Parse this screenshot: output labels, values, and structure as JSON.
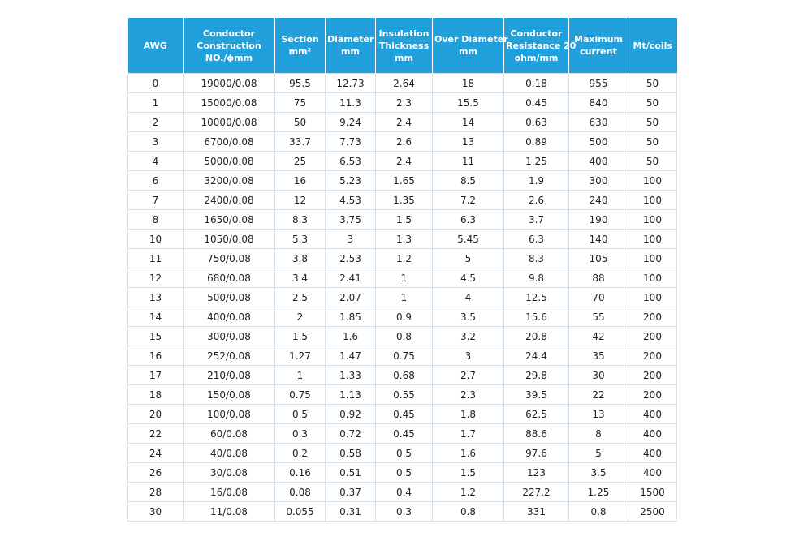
{
  "table": {
    "headers": [
      [
        "AWG"
      ],
      [
        "Conductor",
        "Construction",
        "NO./ϕmm"
      ],
      [
        "Section",
        "mm²"
      ],
      [
        "Diameter",
        "mm"
      ],
      [
        "Insulation",
        "Thickness",
        "mm"
      ],
      [
        "Over Diameter",
        "mm"
      ],
      [
        "Conductor",
        "Resistance 20",
        "ohm/mm"
      ],
      [
        "Maximum",
        "current"
      ],
      [
        "Mt/coils"
      ]
    ],
    "rows": [
      [
        "0",
        "19000/0.08",
        "95.5",
        "12.73",
        "2.64",
        "18",
        "0.18",
        "955",
        "50"
      ],
      [
        "1",
        "15000/0.08",
        "75",
        "11.3",
        "2.3",
        "15.5",
        "0.45",
        "840",
        "50"
      ],
      [
        "2",
        "10000/0.08",
        "50",
        "9.24",
        "2.4",
        "14",
        "0.63",
        "630",
        "50"
      ],
      [
        "3",
        "6700/0.08",
        "33.7",
        "7.73",
        "2.6",
        "13",
        "0.89",
        "500",
        "50"
      ],
      [
        "4",
        "5000/0.08",
        "25",
        "6.53",
        "2.4",
        "11",
        "1.25",
        "400",
        "50"
      ],
      [
        "6",
        "3200/0.08",
        "16",
        "5.23",
        "1.65",
        "8.5",
        "1.9",
        "300",
        "100"
      ],
      [
        "7",
        "2400/0.08",
        "12",
        "4.53",
        "1.35",
        "7.2",
        "2.6",
        "240",
        "100"
      ],
      [
        "8",
        "1650/0.08",
        "8.3",
        "3.75",
        "1.5",
        "6.3",
        "3.7",
        "190",
        "100"
      ],
      [
        "10",
        "1050/0.08",
        "5.3",
        "3",
        "1.3",
        "5.45",
        "6.3",
        "140",
        "100"
      ],
      [
        "11",
        "750/0.08",
        "3.8",
        "2.53",
        "1.2",
        "5",
        "8.3",
        "105",
        "100"
      ],
      [
        "12",
        "680/0.08",
        "3.4",
        "2.41",
        "1",
        "4.5",
        "9.8",
        "88",
        "100"
      ],
      [
        "13",
        "500/0.08",
        "2.5",
        "2.07",
        "1",
        "4",
        "12.5",
        "70",
        "100"
      ],
      [
        "14",
        "400/0.08",
        "2",
        "1.85",
        "0.9",
        "3.5",
        "15.6",
        "55",
        "200"
      ],
      [
        "15",
        "300/0.08",
        "1.5",
        "1.6",
        "0.8",
        "3.2",
        "20.8",
        "42",
        "200"
      ],
      [
        "16",
        "252/0.08",
        "1.27",
        "1.47",
        "0.75",
        "3",
        "24.4",
        "35",
        "200"
      ],
      [
        "17",
        "210/0.08",
        "1",
        "1.33",
        "0.68",
        "2.7",
        "29.8",
        "30",
        "200"
      ],
      [
        "18",
        "150/0.08",
        "0.75",
        "1.13",
        "0.55",
        "2.3",
        "39.5",
        "22",
        "200"
      ],
      [
        "20",
        "100/0.08",
        "0.5",
        "0.92",
        "0.45",
        "1.8",
        "62.5",
        "13",
        "400"
      ],
      [
        "22",
        "60/0.08",
        "0.3",
        "0.72",
        "0.45",
        "1.7",
        "88.6",
        "8",
        "400"
      ],
      [
        "24",
        "40/0.08",
        "0.2",
        "0.58",
        "0.5",
        "1.6",
        "97.6",
        "5",
        "400"
      ],
      [
        "26",
        "30/0.08",
        "0.16",
        "0.51",
        "0.5",
        "1.5",
        "123",
        "3.5",
        "400"
      ],
      [
        "28",
        "16/0.08",
        "0.08",
        "0.37",
        "0.4",
        "1.2",
        "227.2",
        "1.25",
        "1500"
      ],
      [
        "30",
        "11/0.08",
        "0.055",
        "0.31",
        "0.3",
        "0.8",
        "331",
        "0.8",
        "2500"
      ]
    ]
  }
}
